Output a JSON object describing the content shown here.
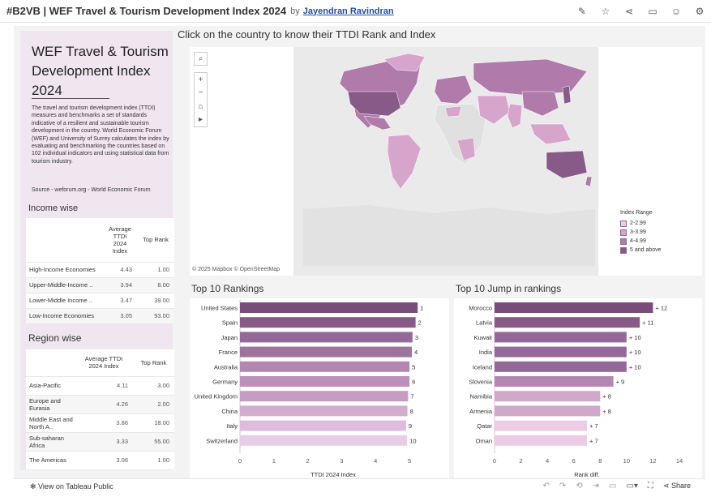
{
  "header": {
    "title": "#B2VB | WEF Travel & Tourism Development Index 2024",
    "by": "by",
    "author": "Jayendran Ravindran"
  },
  "left_panel": {
    "title_line1": "WEF Travel & Tourism",
    "title_line2": "Development Index",
    "title_line3": "2024",
    "description": "The travel and tourism development index (TTDI) measures and benchmarks a set of standards indicative of a resilient and sustainable tourism development in the country. World Economic Forum (WEF) and University of Surrey calculates the index by evaluating and benchmarking the countries based on 102 individual indicators and using statistical data from tourism industry.",
    "source": "Source - weforum.org - World Economic Forum",
    "income": {
      "heading": "Income wise",
      "col_index": "Average TTDI 2024 Index",
      "col_rank": "Top Rank",
      "rows": [
        {
          "name": "High-Income Economies",
          "index": "4.43",
          "rank": "1.00"
        },
        {
          "name": "Upper-Middle-Income ..",
          "index": "3.94",
          "rank": "8.00"
        },
        {
          "name": "Lower-Middle Income ..",
          "index": "3.47",
          "rank": "39.00"
        },
        {
          "name": "Low-Income Economies",
          "index": "3.05",
          "rank": "93.00"
        }
      ]
    },
    "region": {
      "heading": "Region wise",
      "col_index": "Average TTDI 2024 Index",
      "col_rank": "Top Rank",
      "rows": [
        {
          "name": "Asia-Pacific",
          "index": "4.11",
          "rank": "3.00"
        },
        {
          "name": "Europe and Eurasia",
          "index": "4.26",
          "rank": "2.00"
        },
        {
          "name": "Middle East and North A..",
          "index": "3.86",
          "rank": "18.00"
        },
        {
          "name": "Sub-saharan Africa",
          "index": "3.33",
          "rank": "55.00"
        },
        {
          "name": "The Americas",
          "index": "3.06",
          "rank": "1.00"
        }
      ]
    }
  },
  "map": {
    "heading": "Click on the country to know their TTDI Rank and Index",
    "attribution": "© 2025 Mapbox  © OpenStreetMap",
    "legend_title": "Index Range",
    "legend": [
      {
        "label": "2-2.99",
        "color": "#eccbe4"
      },
      {
        "label": "3-3.99",
        "color": "#d7a5cc"
      },
      {
        "label": "4-4.99",
        "color": "#b07aaa"
      },
      {
        "label": "5 and above",
        "color": "#875a87"
      }
    ],
    "controls": {
      "search": "⌕",
      "zoom_in": "+",
      "zoom_out": "−",
      "home": "⌂",
      "play": "▸"
    }
  },
  "chart_data": [
    {
      "type": "bar",
      "orientation": "horizontal",
      "title": "Top 10 Rankings",
      "xlabel": "TTDI 2024 Index",
      "categories": [
        "United States",
        "Spain",
        "Japan",
        "France",
        "Australia",
        "Germany",
        "United Kingdom",
        "China",
        "Italy",
        "Switzerland"
      ],
      "values": [
        5.24,
        5.18,
        5.09,
        5.07,
        5.0,
        5.0,
        4.96,
        4.94,
        4.9,
        4.93
      ],
      "data_labels": [
        "1",
        "2",
        "3",
        "4",
        "5",
        "6",
        "7",
        "8",
        "9",
        "10"
      ],
      "colors": [
        "#7a4c7a",
        "#875a87",
        "#94699a",
        "#9d73a0",
        "#b487b3",
        "#bb90b9",
        "#c59dc2",
        "#d2add0",
        "#ddbcdc",
        "#e8cde6"
      ],
      "xlim": [
        0,
        5.5
      ],
      "ticks": [
        0,
        1,
        2,
        3,
        4,
        5
      ]
    },
    {
      "type": "bar",
      "orientation": "horizontal",
      "title": "Top 10 Jump in rankings",
      "xlabel": "Rank diff.",
      "categories": [
        "Morocco",
        "Latvia",
        "Kuwait",
        "India",
        "Iceland",
        "Slovenia",
        "Namibia",
        "Armenia",
        "Qatar",
        "Oman"
      ],
      "values": [
        12,
        11,
        10,
        10,
        10,
        9,
        8,
        8,
        7,
        7
      ],
      "data_labels": [
        "+ 12",
        "+ 11",
        "+ 10",
        "+ 10",
        "+ 10",
        "+ 9",
        "+ 8",
        "+ 8",
        "+ 7",
        "+ 7"
      ],
      "colors": [
        "#7a4c7a",
        "#875a87",
        "#94699a",
        "#94699a",
        "#94699a",
        "#b487b3",
        "#cfa8cc",
        "#cfa8cc",
        "#eccbe4",
        "#eccbe4"
      ],
      "xlim": [
        0,
        14
      ],
      "ticks": [
        0,
        2,
        4,
        6,
        8,
        10,
        12,
        14
      ]
    }
  ],
  "footer": {
    "view_label": "View on Tableau Public",
    "share_label": "Share"
  }
}
